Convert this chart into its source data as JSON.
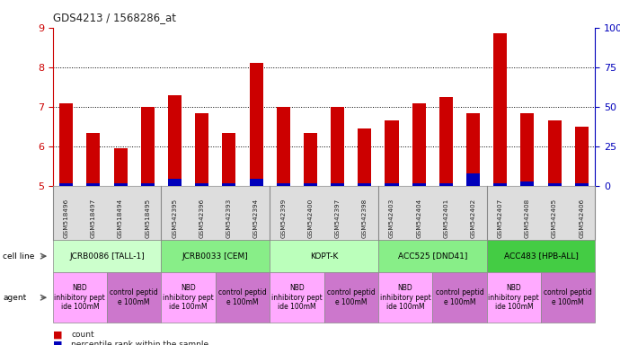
{
  "title": "GDS4213 / 1568286_at",
  "samples": [
    "GSM518496",
    "GSM518497",
    "GSM518494",
    "GSM518495",
    "GSM542395",
    "GSM542396",
    "GSM542393",
    "GSM542394",
    "GSM542399",
    "GSM542400",
    "GSM542397",
    "GSM542398",
    "GSM542403",
    "GSM542404",
    "GSM542401",
    "GSM542402",
    "GSM542407",
    "GSM542408",
    "GSM542405",
    "GSM542406"
  ],
  "count_values": [
    7.1,
    6.35,
    5.95,
    7.0,
    7.3,
    6.85,
    6.35,
    8.1,
    7.0,
    6.35,
    7.0,
    6.45,
    6.65,
    7.1,
    7.25,
    6.85,
    8.85,
    6.85,
    6.65,
    6.5
  ],
  "percentile_values": [
    2,
    2,
    2,
    2,
    5,
    2,
    2,
    5,
    2,
    2,
    2,
    2,
    2,
    2,
    2,
    8,
    2,
    3,
    2,
    2
  ],
  "ylim_left": [
    5,
    9
  ],
  "ylim_right": [
    0,
    100
  ],
  "yticks_left": [
    5,
    6,
    7,
    8,
    9
  ],
  "yticks_right": [
    0,
    25,
    50,
    75,
    100
  ],
  "ytick_labels_right": [
    "0",
    "25",
    "50",
    "75",
    "100%"
  ],
  "bar_color_red": "#cc0000",
  "bar_color_blue": "#0000bb",
  "grid_color": "#000000",
  "cell_lines": [
    {
      "label": "JCRB0086 [TALL-1]",
      "start": 0,
      "end": 4,
      "color": "#ccffcc"
    },
    {
      "label": "JCRB0033 [CEM]",
      "start": 4,
      "end": 8,
      "color": "#88ee88"
    },
    {
      "label": "KOPT-K",
      "start": 8,
      "end": 12,
      "color": "#bbffbb"
    },
    {
      "label": "ACC525 [DND41]",
      "start": 12,
      "end": 16,
      "color": "#88ee88"
    },
    {
      "label": "ACC483 [HPB-ALL]",
      "start": 16,
      "end": 20,
      "color": "#44cc44"
    }
  ],
  "agents": [
    {
      "label": "NBD\ninhibitory pept\nide 100mM",
      "start": 0,
      "end": 2,
      "color": "#ffaaff"
    },
    {
      "label": "control peptid\ne 100mM",
      "start": 2,
      "end": 4,
      "color": "#cc77cc"
    },
    {
      "label": "NBD\ninhibitory pept\nide 100mM",
      "start": 4,
      "end": 6,
      "color": "#ffaaff"
    },
    {
      "label": "control peptid\ne 100mM",
      "start": 6,
      "end": 8,
      "color": "#cc77cc"
    },
    {
      "label": "NBD\ninhibitory pept\nide 100mM",
      "start": 8,
      "end": 10,
      "color": "#ffaaff"
    },
    {
      "label": "control peptid\ne 100mM",
      "start": 10,
      "end": 12,
      "color": "#cc77cc"
    },
    {
      "label": "NBD\ninhibitory pept\nide 100mM",
      "start": 12,
      "end": 14,
      "color": "#ffaaff"
    },
    {
      "label": "control peptid\ne 100mM",
      "start": 14,
      "end": 16,
      "color": "#cc77cc"
    },
    {
      "label": "NBD\ninhibitory pept\nide 100mM",
      "start": 16,
      "end": 18,
      "color": "#ffaaff"
    },
    {
      "label": "control peptid\ne 100mM",
      "start": 18,
      "end": 20,
      "color": "#cc77cc"
    }
  ],
  "ylabel_left_color": "#cc0000",
  "ylabel_right_color": "#0000bb",
  "bg_color": "#ffffff",
  "sample_bg_color": "#dddddd",
  "legend_count_color": "#cc0000",
  "legend_percentile_color": "#0000bb"
}
